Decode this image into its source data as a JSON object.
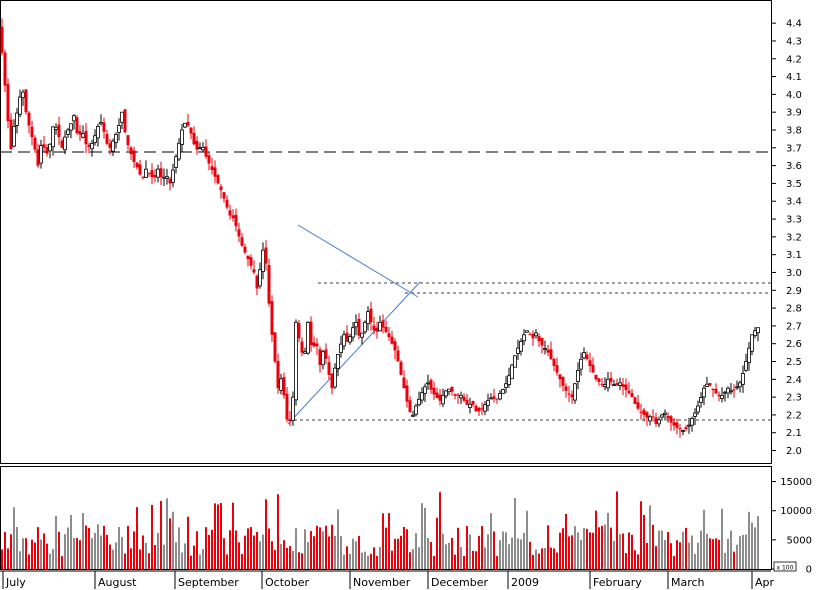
{
  "chart_data": {
    "type": "candlestick",
    "price_axis": {
      "ylim": [
        1.93,
        4.53
      ],
      "ticks": [
        "2.0",
        "2.1",
        "2.2",
        "2.3",
        "2.4",
        "2.5",
        "2.6",
        "2.7",
        "2.8",
        "2.9",
        "3.0",
        "3.1",
        "3.2",
        "3.3",
        "3.4",
        "3.5",
        "3.6",
        "3.7",
        "3.8",
        "3.9",
        "4.0",
        "4.1",
        "4.2",
        "4.3",
        "4.4"
      ]
    },
    "volume_axis": {
      "ylim": [
        0,
        17500
      ],
      "ticks": [
        "0",
        "5000",
        "10000",
        "15000"
      ],
      "multiplier_label": "x 100"
    },
    "x_months": [
      "July",
      "August",
      "September",
      "October",
      "November",
      "December",
      "2009",
      "February",
      "March",
      "Apr"
    ],
    "colors": {
      "up": "#000000",
      "down": "#e8000b",
      "volume_down": "#e8000b",
      "volume_up": "#8c8c8c",
      "trendline": "#4a7ad6",
      "support": "#000000"
    },
    "price_path": [
      [
        0,
        4.4
      ],
      [
        3,
        4.15
      ],
      [
        7,
        3.95
      ],
      [
        10,
        3.65
      ],
      [
        14,
        3.82
      ],
      [
        18,
        3.92
      ],
      [
        22,
        4.05
      ],
      [
        26,
        3.9
      ],
      [
        30,
        3.8
      ],
      [
        34,
        3.72
      ],
      [
        38,
        3.6
      ],
      [
        42,
        3.75
      ],
      [
        46,
        3.65
      ],
      [
        50,
        3.72
      ],
      [
        54,
        3.85
      ],
      [
        58,
        3.78
      ],
      [
        62,
        3.7
      ],
      [
        66,
        3.78
      ],
      [
        70,
        3.82
      ],
      [
        74,
        3.88
      ],
      [
        78,
        3.75
      ],
      [
        82,
        3.8
      ],
      [
        86,
        3.72
      ],
      [
        90,
        3.7
      ],
      [
        94,
        3.75
      ],
      [
        98,
        3.82
      ],
      [
        102,
        3.85
      ],
      [
        106,
        3.73
      ],
      [
        110,
        3.7
      ],
      [
        114,
        3.75
      ],
      [
        118,
        3.8
      ],
      [
        122,
        3.9
      ],
      [
        126,
        3.75
      ],
      [
        130,
        3.68
      ],
      [
        134,
        3.62
      ],
      [
        138,
        3.58
      ],
      [
        142,
        3.52
      ],
      [
        146,
        3.58
      ],
      [
        150,
        3.55
      ],
      [
        154,
        3.52
      ],
      [
        158,
        3.58
      ],
      [
        162,
        3.52
      ],
      [
        166,
        3.55
      ],
      [
        170,
        3.5
      ],
      [
        174,
        3.6
      ],
      [
        178,
        3.7
      ],
      [
        182,
        3.8
      ],
      [
        186,
        3.85
      ],
      [
        190,
        3.8
      ],
      [
        194,
        3.72
      ],
      [
        198,
        3.68
      ],
      [
        202,
        3.72
      ],
      [
        206,
        3.65
      ],
      [
        210,
        3.6
      ],
      [
        214,
        3.55
      ],
      [
        218,
        3.5
      ],
      [
        222,
        3.45
      ],
      [
        226,
        3.38
      ],
      [
        230,
        3.32
      ],
      [
        234,
        3.3
      ],
      [
        238,
        3.22
      ],
      [
        242,
        3.15
      ],
      [
        246,
        3.1
      ],
      [
        250,
        3.05
      ],
      [
        254,
        3.0
      ],
      [
        258,
        2.88
      ],
      [
        262,
        3.15
      ],
      [
        266,
        3.05
      ],
      [
        270,
        2.75
      ],
      [
        274,
        2.55
      ],
      [
        278,
        2.35
      ],
      [
        282,
        2.42
      ],
      [
        286,
        2.2
      ],
      [
        289,
        2.12
      ],
      [
        293,
        2.3
      ],
      [
        296,
        2.72
      ],
      [
        300,
        2.6
      ],
      [
        304,
        2.5
      ],
      [
        308,
        2.72
      ],
      [
        312,
        2.55
      ],
      [
        316,
        2.62
      ],
      [
        320,
        2.48
      ],
      [
        324,
        2.58
      ],
      [
        328,
        2.45
      ],
      [
        332,
        2.35
      ],
      [
        336,
        2.5
      ],
      [
        340,
        2.58
      ],
      [
        344,
        2.65
      ],
      [
        348,
        2.6
      ],
      [
        352,
        2.68
      ],
      [
        356,
        2.72
      ],
      [
        360,
        2.62
      ],
      [
        364,
        2.7
      ],
      [
        368,
        2.78
      ],
      [
        372,
        2.7
      ],
      [
        376,
        2.65
      ],
      [
        380,
        2.72
      ],
      [
        384,
        2.68
      ],
      [
        388,
        2.65
      ],
      [
        392,
        2.6
      ],
      [
        396,
        2.55
      ],
      [
        400,
        2.45
      ],
      [
        404,
        2.35
      ],
      [
        408,
        2.25
      ],
      [
        412,
        2.18
      ],
      [
        416,
        2.25
      ],
      [
        420,
        2.3
      ],
      [
        424,
        2.35
      ],
      [
        428,
        2.38
      ],
      [
        432,
        2.33
      ],
      [
        436,
        2.3
      ],
      [
        440,
        2.28
      ],
      [
        444,
        2.32
      ],
      [
        448,
        2.35
      ],
      [
        452,
        2.33
      ],
      [
        456,
        2.3
      ],
      [
        460,
        2.32
      ],
      [
        464,
        2.28
      ],
      [
        468,
        2.25
      ],
      [
        472,
        2.27
      ],
      [
        476,
        2.22
      ],
      [
        480,
        2.22
      ],
      [
        484,
        2.25
      ],
      [
        488,
        2.28
      ],
      [
        492,
        2.3
      ],
      [
        496,
        2.28
      ],
      [
        500,
        2.32
      ],
      [
        504,
        2.35
      ],
      [
        508,
        2.4
      ],
      [
        512,
        2.48
      ],
      [
        516,
        2.55
      ],
      [
        520,
        2.6
      ],
      [
        524,
        2.65
      ],
      [
        528,
        2.68
      ],
      [
        532,
        2.62
      ],
      [
        536,
        2.66
      ],
      [
        540,
        2.6
      ],
      [
        544,
        2.58
      ],
      [
        548,
        2.55
      ],
      [
        552,
        2.5
      ],
      [
        556,
        2.45
      ],
      [
        560,
        2.4
      ],
      [
        564,
        2.35
      ],
      [
        568,
        2.32
      ],
      [
        572,
        2.3
      ],
      [
        576,
        2.4
      ],
      [
        580,
        2.5
      ],
      [
        584,
        2.55
      ],
      [
        588,
        2.5
      ],
      [
        592,
        2.45
      ],
      [
        596,
        2.4
      ],
      [
        600,
        2.38
      ],
      [
        604,
        2.36
      ],
      [
        608,
        2.4
      ],
      [
        612,
        2.38
      ],
      [
        616,
        2.36
      ],
      [
        620,
        2.38
      ],
      [
        624,
        2.35
      ],
      [
        628,
        2.33
      ],
      [
        632,
        2.3
      ],
      [
        636,
        2.25
      ],
      [
        640,
        2.22
      ],
      [
        644,
        2.2
      ],
      [
        648,
        2.18
      ],
      [
        652,
        2.2
      ],
      [
        656,
        2.15
      ],
      [
        660,
        2.18
      ],
      [
        664,
        2.22
      ],
      [
        668,
        2.18
      ],
      [
        672,
        2.15
      ],
      [
        676,
        2.13
      ],
      [
        680,
        2.12
      ],
      [
        684,
        2.11
      ],
      [
        688,
        2.13
      ],
      [
        692,
        2.18
      ],
      [
        696,
        2.22
      ],
      [
        700,
        2.28
      ],
      [
        704,
        2.35
      ],
      [
        708,
        2.38
      ],
      [
        712,
        2.35
      ],
      [
        716,
        2.32
      ],
      [
        720,
        2.3
      ],
      [
        724,
        2.32
      ],
      [
        728,
        2.35
      ],
      [
        732,
        2.33
      ],
      [
        736,
        2.35
      ],
      [
        740,
        2.38
      ],
      [
        744,
        2.45
      ],
      [
        748,
        2.55
      ],
      [
        752,
        2.65
      ],
      [
        756,
        2.68
      ],
      [
        760,
        2.7
      ]
    ]
  }
}
